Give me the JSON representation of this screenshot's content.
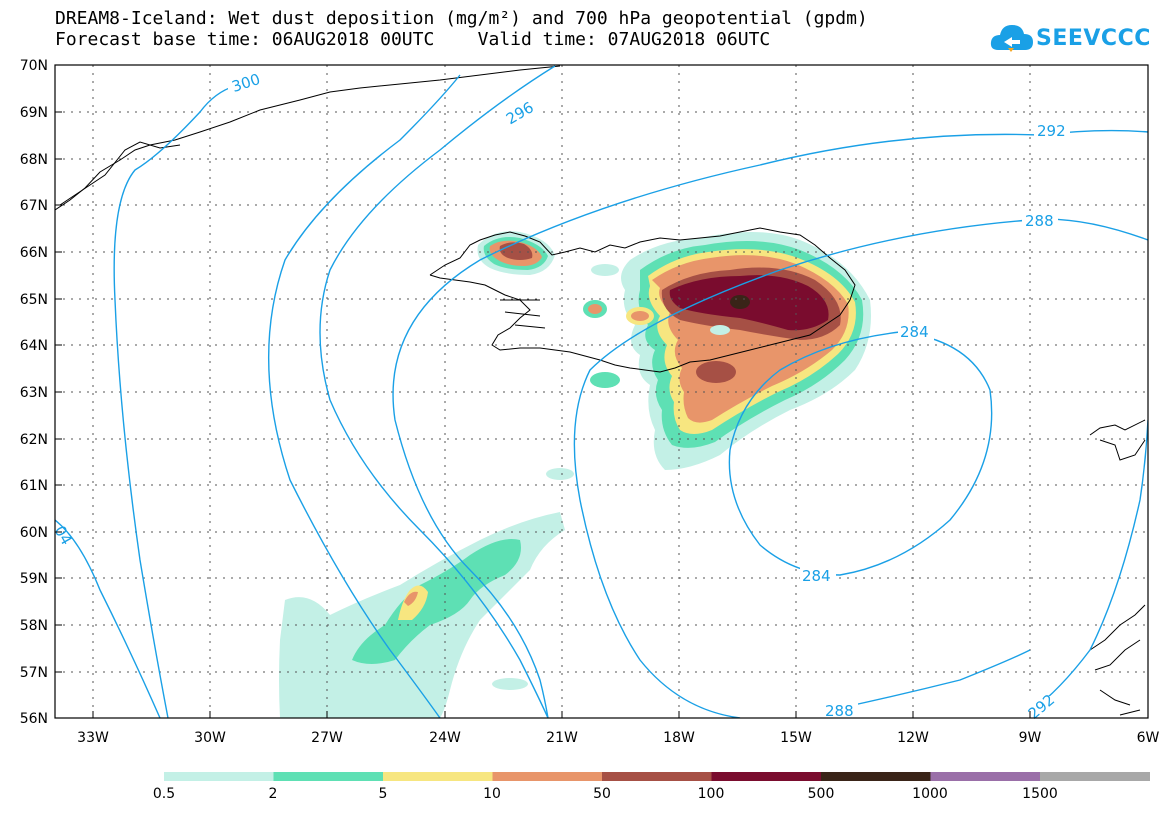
{
  "header": {
    "title_line1": "DREAM8-Iceland: Wet dust deposition (mg/m²) and 700 hPa geopotential (gpdm)",
    "title_line2": "Forecast base time: 06AUG2018 00UTC    Valid time: 07AUG2018 06UTC"
  },
  "logo": {
    "text": "SEEVCCC",
    "icon": "cloud-logo-icon",
    "color": "#1aa0e6"
  },
  "map": {
    "lat_labels": [
      "70N",
      "69N",
      "68N",
      "67N",
      "66N",
      "65N",
      "64N",
      "63N",
      "62N",
      "61N",
      "60N",
      "59N",
      "58N",
      "57N",
      "56N"
    ],
    "lon_labels": [
      "33W",
      "30W",
      "27W",
      "24W",
      "21W",
      "18W",
      "15W",
      "12W",
      "9W",
      "6W"
    ],
    "contour_color": "#1aa0e6",
    "contour_labels": [
      "300",
      "296",
      "292",
      "288",
      "284",
      "284",
      "288",
      "292",
      "04"
    ]
  },
  "colorbar": {
    "labels": [
      "0.5",
      "2",
      "5",
      "10",
      "50",
      "100",
      "500",
      "1000",
      "1500"
    ],
    "colors": [
      "#c3f0e6",
      "#5ee0b4",
      "#f7e680",
      "#e8956a",
      "#a65045",
      "#7a0c2e",
      "#3a2418",
      "#9a6fa8",
      "#a8a8a8"
    ]
  }
}
